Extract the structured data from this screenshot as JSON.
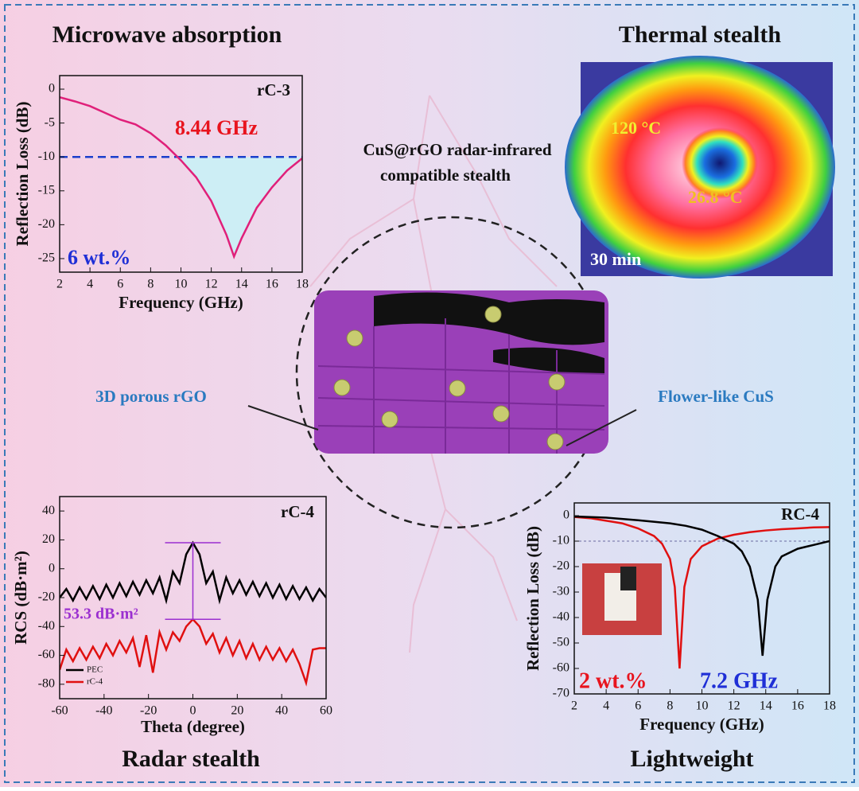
{
  "sections": {
    "top_left": "Microwave absorption",
    "top_right": "Thermal stealth",
    "bottom_left": "Radar stealth",
    "bottom_right": "Lightweight"
  },
  "center": {
    "title_lines": [
      "CuS@rGO radar-infrared",
      "compatible stealth"
    ],
    "left_label": "3D porous rGO",
    "right_label": "Flower-like CuS"
  },
  "thermal": {
    "hot": "120 °C",
    "cold": "26.8 °C",
    "time": "30 min"
  },
  "chart_data": [
    {
      "type": "line",
      "label": "rC-3",
      "annotations": [
        {
          "text": "8.44 GHz",
          "color": "#e8141e"
        },
        {
          "text": "6 wt.%",
          "color": "#1f2fd6"
        }
      ],
      "x_label": "Frequency (GHz)",
      "y_label": "Reflection Loss (dB)",
      "x": [
        2,
        3,
        4,
        5,
        6,
        7,
        8,
        9,
        10,
        11,
        12,
        13,
        13.5,
        14,
        15,
        16,
        17,
        18
      ],
      "values": [
        -1.2,
        -1.8,
        -2.5,
        -3.5,
        -4.5,
        -5.2,
        -6.5,
        -8.3,
        -10.5,
        -13,
        -16.5,
        -21.5,
        -24.7,
        -22,
        -17.5,
        -14.5,
        -12,
        -10.2
      ],
      "color": "#e0207a",
      "threshold": -10,
      "threshold_color": "#1a3fcc",
      "fill_color": "#cdeef5",
      "xlim": [
        2,
        18
      ],
      "ylim": [
        -27,
        2
      ],
      "xticks": [
        2,
        4,
        6,
        8,
        10,
        12,
        14,
        16,
        18
      ],
      "yticks": [
        0,
        -5,
        -10,
        -15,
        -20,
        -25
      ]
    },
    {
      "type": "line",
      "label": "rC-4",
      "annotations": [
        {
          "text": "53.3 dB·m²",
          "color": "#9b2fd0"
        }
      ],
      "x_label": "Theta (degree)",
      "y_label": "RCS (dB·m²)",
      "legend": "lower left",
      "x": [
        -60,
        -57,
        -54,
        -51,
        -48,
        -45,
        -42,
        -39,
        -36,
        -33,
        -30,
        -27,
        -24,
        -21,
        -18,
        -15,
        -12,
        -9,
        -6,
        -3,
        0,
        3,
        6,
        9,
        12,
        15,
        18,
        21,
        24,
        27,
        30,
        33,
        36,
        39,
        42,
        45,
        48,
        51,
        54,
        57,
        60
      ],
      "series": [
        {
          "name": "PEC",
          "color": "#000000",
          "values": [
            -20,
            -14,
            -22,
            -13,
            -21,
            -12,
            -21,
            -11,
            -20,
            -10,
            -19,
            -9,
            -18,
            -8,
            -17,
            -6,
            -22,
            -2,
            -10,
            10,
            18,
            10,
            -10,
            -2,
            -22,
            -6,
            -17,
            -8,
            -18,
            -9,
            -19,
            -10,
            -20,
            -11,
            -21,
            -12,
            -21,
            -13,
            -22,
            -14,
            -20
          ]
        },
        {
          "name": "rC-4",
          "color": "#e01010",
          "values": [
            -70,
            -56,
            -64,
            -55,
            -63,
            -54,
            -62,
            -52,
            -60,
            -50,
            -58,
            -48,
            -68,
            -46,
            -72,
            -44,
            -56,
            -44,
            -50,
            -40,
            -35,
            -40,
            -52,
            -45,
            -58,
            -48,
            -60,
            -50,
            -62,
            -52,
            -63,
            -54,
            -63,
            -55,
            -64,
            -56,
            -66,
            -79,
            -56,
            -55,
            -55
          ]
        }
      ],
      "xlim": [
        -60,
        60
      ],
      "ylim": [
        -90,
        50
      ],
      "xticks": [
        -60,
        -40,
        -20,
        0,
        20,
        40,
        60
      ],
      "yticks": [
        40,
        20,
        0,
        -20,
        -40,
        -60,
        -80
      ]
    },
    {
      "type": "line",
      "label": "RC-4",
      "annotations": [
        {
          "text": "2 wt.%",
          "color": "#e8141e"
        },
        {
          "text": "7.2 GHz",
          "color": "#1f2fd6"
        }
      ],
      "x_label": "Frequency (GHz)",
      "y_label": "Reflection Loss (dB)",
      "threshold": -10,
      "threshold_color": "#6a6aa0",
      "series": [
        {
          "color": "#e01010",
          "x": [
            2,
            3,
            4,
            5,
            6,
            7,
            7.5,
            8,
            8.3,
            8.6,
            8.9,
            9.3,
            10,
            11,
            12,
            13,
            14,
            15,
            16,
            17,
            18
          ],
          "values": [
            -0.5,
            -1,
            -2,
            -3,
            -5,
            -8,
            -11,
            -17,
            -28,
            -60,
            -28,
            -17,
            -12,
            -9,
            -7.5,
            -6.5,
            -5.8,
            -5.3,
            -5,
            -4.6,
            -4.5
          ]
        },
        {
          "color": "#000000",
          "x": [
            2,
            4,
            6,
            8,
            9,
            10,
            11,
            12,
            12.5,
            13,
            13.5,
            13.8,
            14.1,
            14.6,
            15,
            16,
            17,
            18
          ],
          "values": [
            -0.3,
            -0.8,
            -1.8,
            -3,
            -4,
            -5.5,
            -8,
            -11,
            -14,
            -20,
            -33,
            -55,
            -33,
            -20,
            -16,
            -13,
            -11.5,
            -10
          ]
        }
      ],
      "xlim": [
        2,
        18
      ],
      "ylim": [
        -70,
        5
      ],
      "xticks": [
        2,
        4,
        6,
        8,
        10,
        12,
        14,
        16,
        18
      ],
      "yticks": [
        0,
        -10,
        -20,
        -30,
        -40,
        -50,
        -60,
        -70
      ]
    }
  ]
}
